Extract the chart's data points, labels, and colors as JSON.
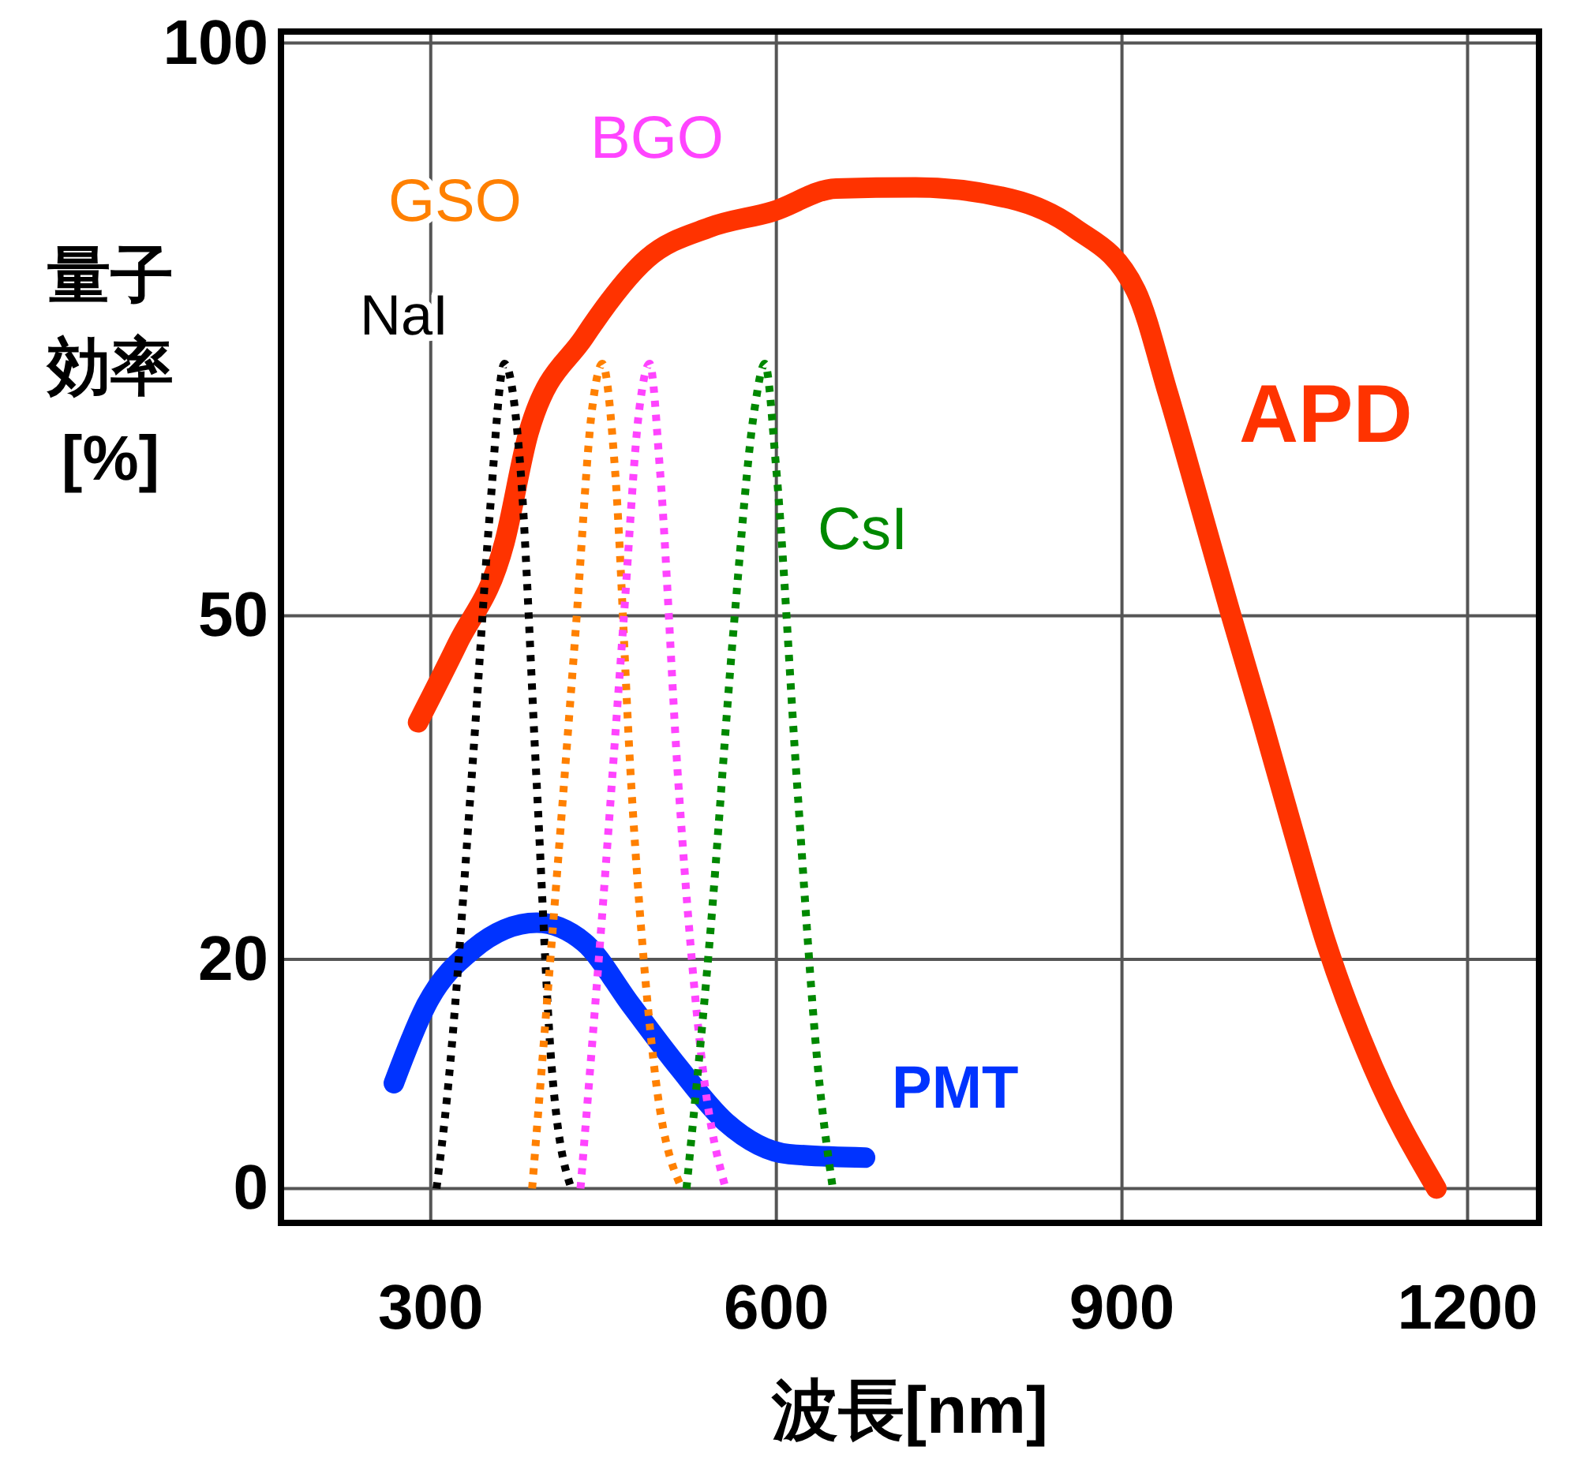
{
  "chart_data": {
    "type": "line",
    "xlabel": "波長[nm]",
    "ylabel": "量子効率[%]",
    "xlim": [
      170,
      1262
    ],
    "ylim": [
      -3,
      101
    ],
    "xticks": [
      300,
      600,
      900,
      1200
    ],
    "yticks": [
      0,
      20,
      50,
      100
    ],
    "grid": true,
    "series": [
      {
        "name": "APD",
        "color": "#ff3300",
        "line_style": "solid",
        "x": [
          289,
          323,
          364,
          385,
          433,
          488,
          542,
          597,
          652,
          721,
          803,
          858,
          912,
          940,
          967,
          994,
          1022,
          1049,
          1077,
          1118,
          1173
        ],
        "values": [
          40.7,
          47.5,
          56.4,
          66,
          74.3,
          81.2,
          83.9,
          85.3,
          87.3,
          87.4,
          86.4,
          83.9,
          78.4,
          69.4,
          59.9,
          50.3,
          40.7,
          31.1,
          21.5,
          10.6,
          0
        ]
      },
      {
        "name": "PMT",
        "color": "#0033ff",
        "line_style": "solid",
        "x": [
          268,
          296,
          337,
          392,
          433,
          474,
          515,
          556,
          611,
          677
        ],
        "values": [
          9.2,
          16,
          20.9,
          23.2,
          21.5,
          16,
          10.6,
          5.8,
          3,
          2.7
        ]
      },
      {
        "name": "NaI",
        "color": "#000000",
        "line_style": "dotted",
        "x": [
          305,
          314,
          337,
          351,
          364,
          378,
          392,
          405,
          422
        ],
        "values": [
          0,
          7.8,
          38,
          58.6,
          72,
          62.7,
          35.3,
          10.6,
          0
        ]
      },
      {
        "name": "GSO",
        "color": "#ff8000",
        "line_style": "dotted",
        "x": [
          388,
          405,
          426,
          440,
          449,
          460,
          474,
          494,
          518
        ],
        "values": [
          0,
          21.5,
          49,
          68,
          72,
          62.7,
          35.3,
          10.6,
          0
        ]
      },
      {
        "name": "BGO",
        "color": "#ff44ff",
        "line_style": "dotted",
        "x": [
          430,
          447,
          467,
          481,
          490,
          499,
          515,
          536,
          556
        ],
        "values": [
          0,
          21.5,
          49,
          68,
          72,
          62.7,
          35.3,
          10.6,
          0
        ]
      },
      {
        "name": "CsI",
        "color": "#008800",
        "line_style": "dotted",
        "x": [
          522,
          542,
          563,
          581,
          590,
          600,
          618,
          636,
          649
        ],
        "values": [
          0,
          21.5,
          49,
          68,
          72,
          62.7,
          35.3,
          10.6,
          0
        ]
      }
    ]
  }
}
